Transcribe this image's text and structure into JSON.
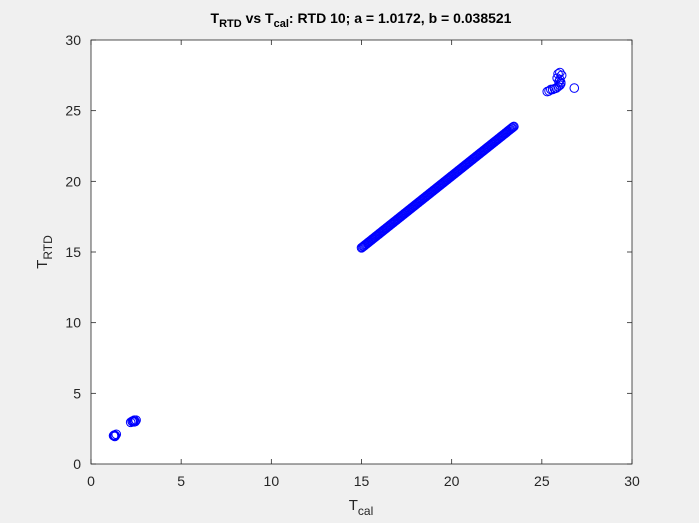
{
  "figure": {
    "background": "#f0f0f0",
    "axes_background": "#ffffff",
    "marker_color": "#0000ff"
  },
  "chart_data": {
    "type": "scatter",
    "title": {
      "main_a": "T",
      "sub_a": "RTD",
      "main_b": " vs T",
      "sub_b": "cal",
      "rest": ": RTD 10; a = 1.0172, b = 0.038521"
    },
    "xlabel": {
      "main": "T",
      "sub": "cal"
    },
    "ylabel": {
      "main": "T",
      "sub": "RTD"
    },
    "xlim": [
      0,
      30
    ],
    "ylim": [
      0,
      30
    ],
    "xticks": [
      0,
      5,
      10,
      15,
      20,
      25,
      30
    ],
    "yticks": [
      0,
      5,
      10,
      15,
      20,
      25,
      30
    ],
    "xtick_labels": [
      "0",
      "5",
      "10",
      "15",
      "20",
      "25",
      "30"
    ],
    "ytick_labels": [
      "0",
      "5",
      "10",
      "15",
      "20",
      "25",
      "30"
    ],
    "grid": false,
    "marker": "circle-open",
    "series": [
      {
        "x": [
          1.25,
          1.3,
          1.35,
          1.4,
          1.32,
          1.28,
          2.2,
          2.3,
          2.35,
          2.4,
          2.45,
          2.5,
          2.28,
          2.38,
          25.3,
          25.4,
          25.5,
          25.6,
          25.7,
          25.8,
          25.9,
          26.0,
          26.05,
          25.95,
          26.0,
          26.1,
          25.9,
          25.85,
          26.0,
          26.05,
          26.8
        ],
        "y": [
          2.0,
          2.05,
          2.0,
          2.1,
          1.95,
          2.02,
          2.95,
          3.0,
          3.05,
          3.1,
          3.0,
          3.1,
          3.02,
          2.98,
          26.35,
          26.4,
          26.5,
          26.5,
          26.55,
          26.6,
          26.7,
          26.8,
          27.0,
          27.05,
          27.2,
          27.5,
          27.6,
          27.3,
          27.7,
          26.9,
          26.6
        ]
      }
    ],
    "linear_segment": {
      "x_start": 15.0,
      "x_end": 23.4,
      "step": 0.1,
      "slope": 1.0172,
      "intercept": 0.038521
    }
  }
}
